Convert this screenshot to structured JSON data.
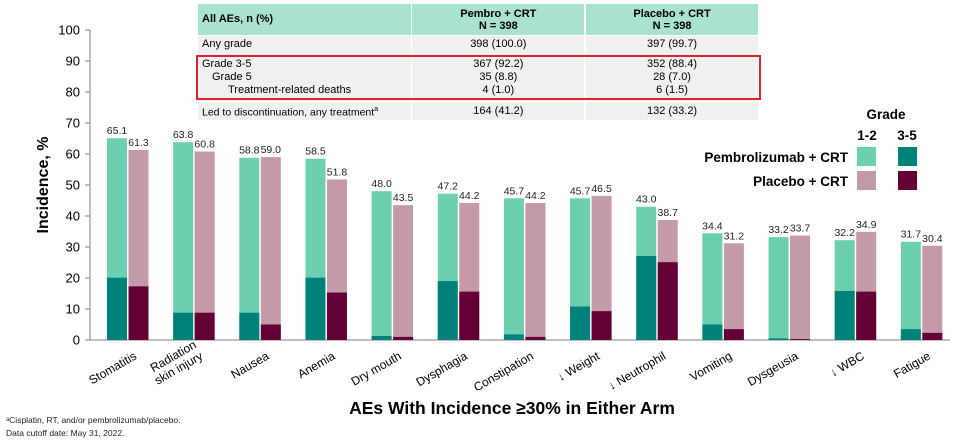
{
  "colors": {
    "pembro_12": "#6ccfb0",
    "pembro_35": "#00827a",
    "placebo_12": "#c49aa9",
    "placebo_35": "#650035",
    "highlight_border": "#e0202a",
    "table_header": "#a9e2cf"
  },
  "table": {
    "header": {
      "label": "All AEs, n (%)",
      "arm1_line1": "Pembro + CRT",
      "arm1_line2": "N = 398",
      "arm2_line1": "Placebo + CRT",
      "arm2_line2": "N = 398"
    },
    "rows": [
      {
        "label": "Any grade",
        "pembro": "398 (100.0)",
        "placebo": "397 (99.7)"
      },
      {
        "label": "Grade 3-5",
        "pembro": "367 (92.2)",
        "placebo": "352 (88.4)"
      },
      {
        "label": "Grade 5",
        "pembro": "35 (8.8)",
        "placebo": "28 (7.0)"
      },
      {
        "label": "Treatment-related deaths",
        "pembro": "4 (1.0)",
        "placebo": "6 (1.5)"
      },
      {
        "label": "Led to discontinuation, any treatment",
        "label_sup": "a",
        "pembro": "164 (41.2)",
        "placebo": "132 (33.2)"
      }
    ]
  },
  "legend": {
    "title": "Grade",
    "col1": "1-2",
    "col2": "3-5",
    "series1": "Pembrolizumab + CRT",
    "series2": "Placebo + CRT"
  },
  "footnotes": [
    "ᵃCisplatin, RT, and/or pembrolizumab/placebo.",
    "Data cutoff date: May 31, 2022."
  ],
  "chart_data": {
    "type": "bar",
    "xlabel": "AEs With Incidence ≥30% in Either Arm",
    "ylabel": "Incidence, %",
    "ylim": [
      0,
      100
    ],
    "yticks": [
      0,
      10,
      20,
      30,
      40,
      50,
      60,
      70,
      80,
      90,
      100
    ],
    "categories": [
      [
        "Stomatitis"
      ],
      [
        "Radiation",
        "skin injury"
      ],
      [
        "Nausea"
      ],
      [
        "Anemia"
      ],
      [
        "Dry mouth"
      ],
      [
        "Dysphagia"
      ],
      [
        "Constipation"
      ],
      [
        "↓ Weight"
      ],
      [
        "↓ Neutrophil"
      ],
      [
        "Vomiting"
      ],
      [
        "Dysgeusia"
      ],
      [
        "↓ WBC"
      ],
      [
        "Fatigue"
      ]
    ],
    "series": [
      {
        "name": "Pembrolizumab + CRT",
        "total": [
          65.1,
          63.8,
          58.8,
          58.5,
          48.0,
          47.2,
          45.7,
          45.7,
          43.0,
          34.4,
          33.2,
          32.2,
          31.7
        ],
        "total_labels": [
          "65.1",
          "63.8",
          "58.8",
          "58.5",
          "48.0",
          "47.2",
          "45.7",
          "45.7",
          "43.0",
          "34.4",
          "33.2",
          "32.2",
          "31.7"
        ],
        "grade_3_5": [
          20.1,
          8.8,
          8.8,
          20.1,
          1.3,
          19.0,
          1.8,
          10.8,
          27.1,
          5.0,
          0.5,
          15.8,
          3.5
        ]
      },
      {
        "name": "Placebo + CRT",
        "total": [
          61.3,
          60.8,
          59.0,
          51.8,
          43.5,
          44.2,
          44.2,
          46.5,
          38.7,
          31.2,
          33.7,
          34.9,
          30.4
        ],
        "total_labels": [
          "61.3",
          "60.8",
          "59.0",
          "51.8",
          "43.5",
          "44.2",
          "44.2",
          "46.5",
          "38.7",
          "31.2",
          "33.7",
          "34.9",
          "30.4"
        ],
        "grade_3_5": [
          17.3,
          8.8,
          5.0,
          15.3,
          1.0,
          15.6,
          1.0,
          9.3,
          25.1,
          3.5,
          0.3,
          15.6,
          2.3
        ]
      }
    ]
  }
}
